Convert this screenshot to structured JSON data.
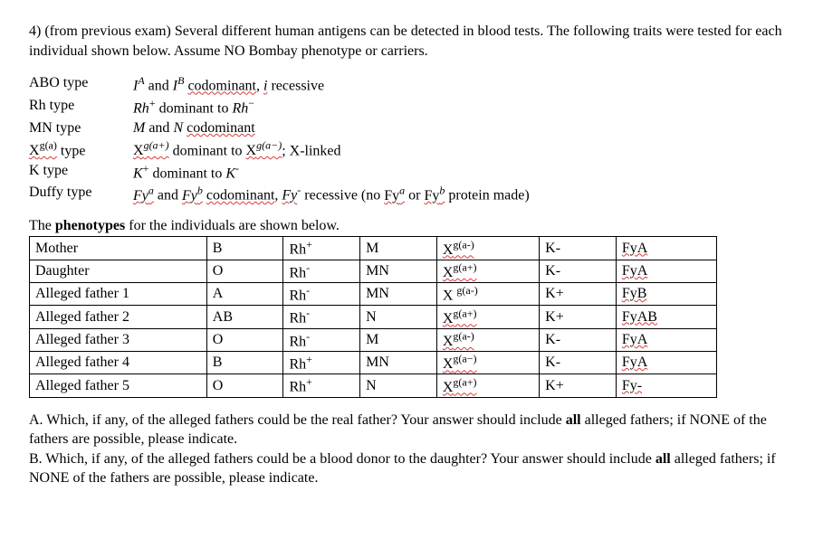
{
  "question": {
    "header_html": "4) (from previous exam) Several different human antigens can be detected in blood tests.  The following traits were tested for each individual shown below.  Assume NO Bombay phenotype or carriers."
  },
  "traits": [
    {
      "label_html": "ABO type",
      "desc_html": "<span class='ital'>I</span><span class='sup'>A</span> and <span class='ital'>I</span><span class='sup'>B</span> <span class='squig'>codominant</span>, <span class='ital squig'>i</span> recessive"
    },
    {
      "label_html": "Rh type",
      "desc_html": "<span class='ital'>Rh</span><span class='supn'>+</span> dominant to <span class='ital'>Rh</span><span class='supn'>−</span>"
    },
    {
      "label_html": "MN type",
      "desc_html": "<span class='ital'>M</span> and <span class='ital'>N</span> <span class='squig'>codominant</span>"
    },
    {
      "label_html": "<span class='squig'>X<span class='supn'>g(a)</span></span> type",
      "desc_html": "<span class='squig'>X<span class='sup'>g(a+)</span></span> dominant to <span class='squig'>X<span class='sup'>g(a−)</span></span>; X-linked"
    },
    {
      "label_html": "K type",
      "desc_html": "<span class='ital'>K</span><span class='supn'>+</span> dominant to <span class='ital'>K</span><span class='supn'>-</span>"
    },
    {
      "label_html": "Duffy type",
      "desc_html": "<span class='ital squig'>Fy<span class='sup'>a</span></span> and <span class='ital squig'>Fy<span class='sup'>b</span></span> <span class='squig'>codominant</span>, <span class='ital squig'>Fy</span><span class='supn'>-</span> recessive (no <span class='squig'>Fy<span class='sup'>a</span></span> or <span class='squig'>Fy<span class='sup'>b</span></span> protein made)"
    }
  ],
  "table_intro_html": "The <span class='bold'>phenotypes</span> for the individuals are shown below.",
  "table": {
    "rows": [
      [
        "Mother",
        "B",
        "Rh<span class='supn'>+</span>",
        "M",
        "<span class='squig'>X<span class='supn'>g(a-)</span></span>",
        "K-",
        "<span class='squig'>FyA</span>"
      ],
      [
        "Daughter",
        "O",
        "Rh<span class='supn'>-</span>",
        "MN",
        "<span class='squig'>X<span class='supn'>g(a+)</span></span>",
        "K-",
        "<span class='squig'>FyA</span>"
      ],
      [
        "Alleged father 1",
        "A",
        "Rh<span class='supn'>-</span>",
        "MN",
        "X <span class='supn'>g(a-)</span>",
        "K+",
        "<span class='squig'>FyB</span>"
      ],
      [
        "Alleged father 2",
        "AB",
        "Rh<span class='supn'>-</span>",
        "N",
        "<span class='squig'>X<span class='supn'>g(a+)</span></span>",
        "K+",
        "<span class='squig'>FyAB</span>"
      ],
      [
        "Alleged father 3",
        "O",
        "Rh<span class='supn'>-</span>",
        "M",
        "<span class='squig'>X<span class='supn'>g(a-)</span></span>",
        "K-",
        "<span class='squig'>FyA</span>"
      ],
      [
        "Alleged father 4",
        "B",
        "Rh<span class='supn'>+</span>",
        "MN",
        "<span class='squig'>X<span class='supn'>g(a−)</span></span>",
        "K-",
        "<span class='squig'>FyA</span>"
      ],
      [
        "Alleged father 5",
        "O",
        "Rh<span class='supn'>+</span>",
        "N",
        "<span class='squig'>X<span class='supn'>g(a+)</span></span>",
        "K+",
        "<span class='squig'>Fy-</span>"
      ]
    ]
  },
  "parts": {
    "a_html": "A. Which, if any, of the alleged fathers could be the real father?  Your answer should include <span class='bold'>all</span> alleged fathers; if NONE of the fathers are possible, please indicate.",
    "b_html": "B.  Which, if any, of the alleged fathers could be a blood donor to the daughter?  Your answer should include <span class='bold'>all</span> alleged fathers; if NONE of the fathers are possible, please indicate."
  }
}
